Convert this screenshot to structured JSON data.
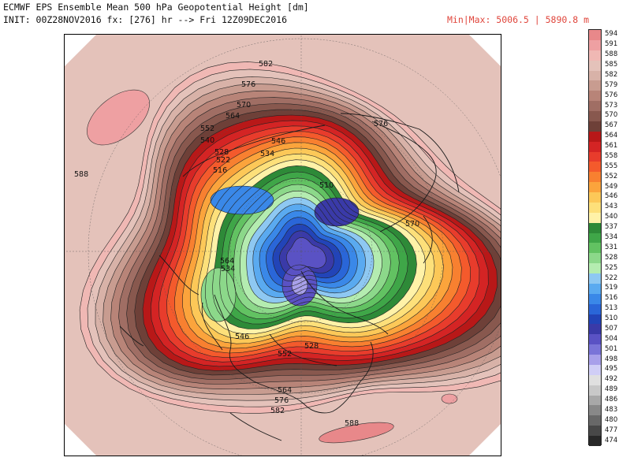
{
  "header": {
    "title": "ECMWF EPS Ensemble Mean 500 hPa Geopotential Height [dm]",
    "init": "INIT: 00Z28NOV2016 fx: [276] hr --> Fri 12Z09DEC2016",
    "minmax": "Min|Max: 5006.5 | 5890.8 m"
  },
  "colorbar": {
    "levels": [
      {
        "value": "594",
        "color": "#e8888a"
      },
      {
        "value": "591",
        "color": "#eea0a2"
      },
      {
        "value": "588",
        "color": "#f0b8b4"
      },
      {
        "value": "585",
        "color": "#e4c2ba"
      },
      {
        "value": "582",
        "color": "#d8b2a8"
      },
      {
        "value": "579",
        "color": "#c89c90"
      },
      {
        "value": "576",
        "color": "#b88478"
      },
      {
        "value": "573",
        "color": "#a06e64"
      },
      {
        "value": "570",
        "color": "#88584e"
      },
      {
        "value": "567",
        "color": "#6e4038"
      },
      {
        "value": "564",
        "color": "#b81818"
      },
      {
        "value": "561",
        "color": "#d42424"
      },
      {
        "value": "558",
        "color": "#e83c2c"
      },
      {
        "value": "555",
        "color": "#f45a2c"
      },
      {
        "value": "552",
        "color": "#f88030"
      },
      {
        "value": "549",
        "color": "#fba43c"
      },
      {
        "value": "546",
        "color": "#fcc858"
      },
      {
        "value": "543",
        "color": "#fde07a"
      },
      {
        "value": "540",
        "color": "#fff2a8"
      },
      {
        "value": "537",
        "color": "#2e8a38"
      },
      {
        "value": "534",
        "color": "#3fa648"
      },
      {
        "value": "531",
        "color": "#62c262"
      },
      {
        "value": "528",
        "color": "#8cd88a"
      },
      {
        "value": "525",
        "color": "#b4ecb0"
      },
      {
        "value": "522",
        "color": "#8ec8f2"
      },
      {
        "value": "519",
        "color": "#5aaaf0"
      },
      {
        "value": "516",
        "color": "#3a88e8"
      },
      {
        "value": "513",
        "color": "#2a66d8"
      },
      {
        "value": "510",
        "color": "#2244b8"
      },
      {
        "value": "507",
        "color": "#3a3aa8"
      },
      {
        "value": "504",
        "color": "#5a52c4"
      },
      {
        "value": "501",
        "color": "#7a74d8"
      },
      {
        "value": "498",
        "color": "#a8a0ea"
      },
      {
        "value": "495",
        "color": "#d0cef6"
      },
      {
        "value": "492",
        "color": "#e0e0e0"
      },
      {
        "value": "489",
        "color": "#c8c8c8"
      },
      {
        "value": "486",
        "color": "#a8a8a8"
      },
      {
        "value": "483",
        "color": "#888888"
      },
      {
        "value": "480",
        "color": "#686868"
      },
      {
        "value": "477",
        "color": "#484848"
      },
      {
        "value": "474",
        "color": "#282828"
      }
    ]
  },
  "map": {
    "contour_labels": [
      "582",
      "576",
      "570",
      "564",
      "552",
      "546",
      "540",
      "534",
      "528",
      "522",
      "516",
      "510",
      "576",
      "570",
      "588",
      "564",
      "534",
      "546",
      "528",
      "552",
      "564",
      "576",
      "582",
      "588"
    ]
  }
}
